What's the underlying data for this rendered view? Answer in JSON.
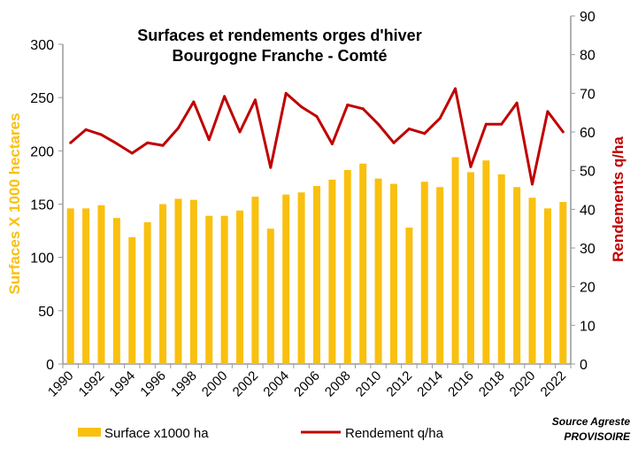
{
  "chart_data": {
    "type": "bar+line",
    "title": "Surfaces et rendements orges d'hiver",
    "subtitle": "Bourgogne Franche - Comté",
    "ylabel": "Surfaces X 1000 hectares",
    "y2label": "Rendements q/ha",
    "ylim": [
      0,
      300
    ],
    "y2lim": [
      0,
      90
    ],
    "yticks": [
      "0",
      "50",
      "100",
      "150",
      "200",
      "250",
      "300"
    ],
    "y2ticks": [
      "0",
      "10",
      "20",
      "30",
      "40",
      "50",
      "60",
      "70",
      "80",
      "90"
    ],
    "x": [
      1990,
      1991,
      1992,
      1993,
      1994,
      1995,
      1996,
      1997,
      1998,
      1999,
      2000,
      2001,
      2002,
      2003,
      2004,
      2005,
      2006,
      2007,
      2008,
      2009,
      2010,
      2011,
      2012,
      2013,
      2014,
      2015,
      2016,
      2017,
      2018,
      2019,
      2020,
      2021,
      2022
    ],
    "xticks": [
      "1990",
      "1992",
      "1994",
      "1996",
      "1998",
      "2000",
      "2002",
      "2004",
      "2006",
      "2008",
      "2010",
      "2012",
      "2014",
      "2016",
      "2018",
      "2020",
      "2022"
    ],
    "series": [
      {
        "name": "Surface x1000 ha",
        "type": "bar",
        "axis": "left",
        "color": "#F9C00F",
        "values": [
          146,
          146,
          149,
          137,
          119,
          133,
          150,
          155,
          154,
          139,
          139,
          144,
          157,
          127,
          159,
          161,
          167,
          173,
          182,
          188,
          174,
          169,
          128,
          171,
          166,
          194,
          180,
          191,
          178,
          166,
          156,
          146,
          152
        ]
      },
      {
        "name": "Rendement q/ha",
        "type": "line",
        "axis": "right",
        "color": "#C00000",
        "values": [
          57.2,
          60.6,
          59.3,
          57,
          54.5,
          57.2,
          56.5,
          61,
          67.8,
          58,
          69.2,
          60,
          68.3,
          50.8,
          70,
          66.5,
          64,
          56.9,
          67,
          66,
          62,
          57.2,
          60.8,
          59.6,
          63.5,
          71.2,
          51,
          62,
          62,
          67.5,
          46.5,
          65.3,
          60
        ]
      }
    ],
    "legend": "bottom",
    "source": "Source Agreste",
    "status": "PROVISOIRE"
  }
}
